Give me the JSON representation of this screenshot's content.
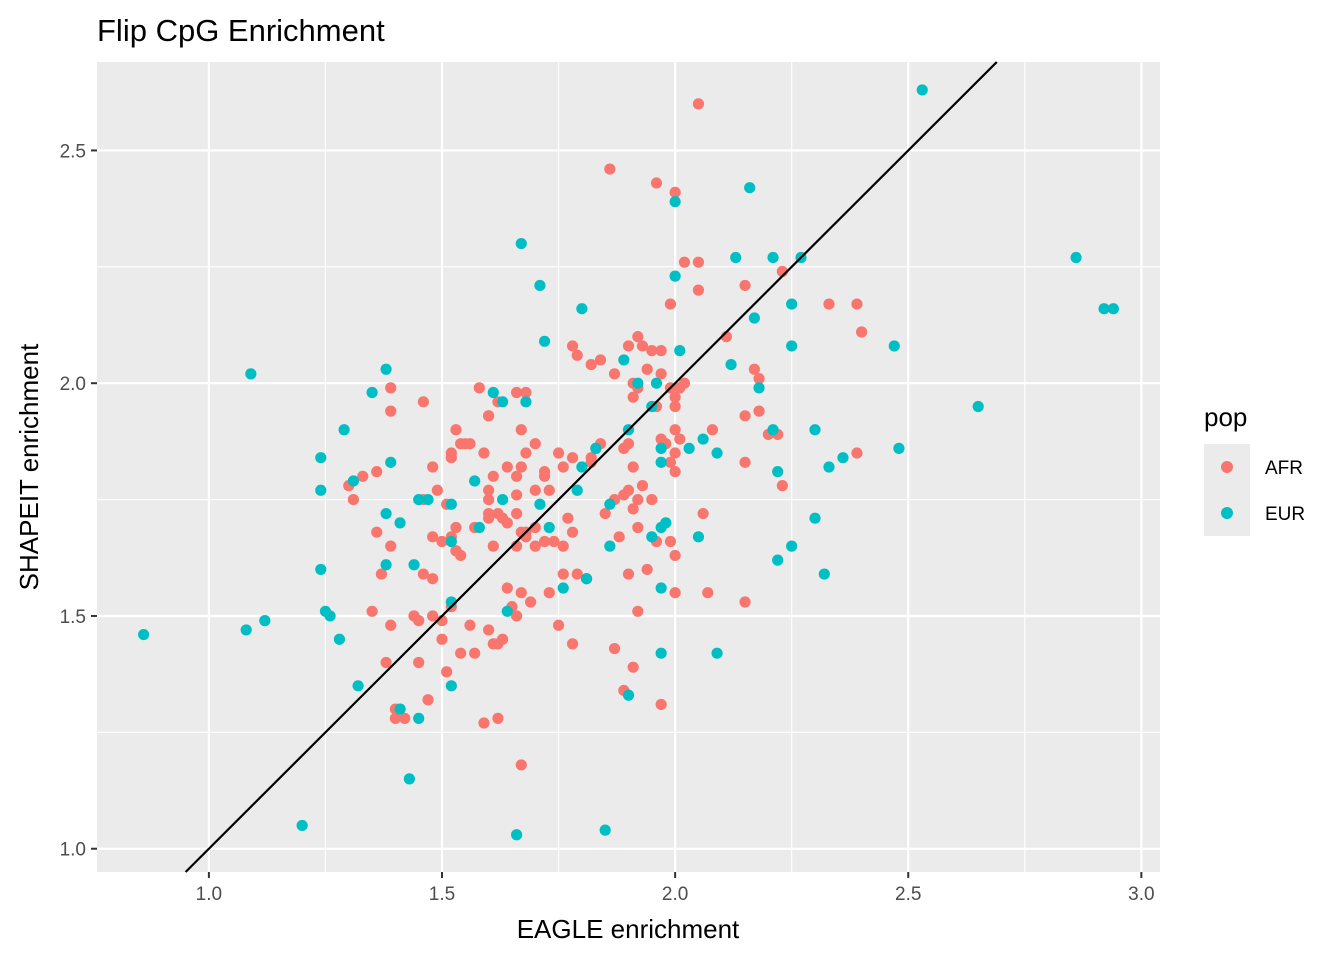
{
  "chart_data": {
    "type": "scatter",
    "title": "Flip CpG Enrichment",
    "xlabel": "EAGLE enrichment",
    "ylabel": "SHAPEIT enrichment",
    "xlim": [
      0.76,
      3.04
    ],
    "ylim": [
      0.95,
      2.69
    ],
    "x_ticks": [
      1.0,
      1.5,
      2.0,
      2.5,
      3.0
    ],
    "x_tick_labels": [
      "1.0",
      "1.5",
      "2.0",
      "2.5",
      "3.0"
    ],
    "y_ticks": [
      1.0,
      1.5,
      2.0,
      2.5
    ],
    "y_tick_labels": [
      "1.0",
      "1.5",
      "2.0",
      "2.5"
    ],
    "grid": true,
    "reference_line": {
      "slope": 1,
      "intercept": 0
    },
    "legend": {
      "title": "pop",
      "position": "right"
    },
    "colors": {
      "AFR": "#f8766d",
      "EUR": "#00bfc4",
      "panel_bg": "#ebebeb",
      "grid": "#ffffff"
    },
    "series": [
      {
        "name": "AFR",
        "points": [
          [
            2.05,
            2.6
          ],
          [
            1.86,
            2.46
          ],
          [
            1.96,
            2.43
          ],
          [
            2.0,
            2.41
          ],
          [
            2.02,
            2.26
          ],
          [
            2.05,
            2.26
          ],
          [
            2.05,
            2.2
          ],
          [
            1.99,
            2.17
          ],
          [
            2.23,
            2.24
          ],
          [
            2.15,
            2.21
          ],
          [
            2.33,
            2.17
          ],
          [
            2.39,
            2.17
          ],
          [
            2.4,
            2.11
          ],
          [
            2.11,
            2.1
          ],
          [
            2.17,
            2.03
          ],
          [
            2.18,
            2.01
          ],
          [
            1.92,
            2.1
          ],
          [
            1.78,
            2.08
          ],
          [
            1.79,
            2.06
          ],
          [
            1.82,
            2.04
          ],
          [
            1.84,
            2.05
          ],
          [
            1.87,
            2.02
          ],
          [
            1.9,
            2.08
          ],
          [
            1.93,
            2.08
          ],
          [
            1.95,
            2.07
          ],
          [
            1.97,
            2.07
          ],
          [
            1.94,
            2.03
          ],
          [
            1.97,
            2.02
          ],
          [
            1.91,
            2.0
          ],
          [
            1.92,
            1.99
          ],
          [
            1.99,
            1.99
          ],
          [
            2.01,
            1.99
          ],
          [
            2.02,
            2.0
          ],
          [
            2.0,
            1.97
          ],
          [
            1.91,
            1.97
          ],
          [
            1.96,
            1.95
          ],
          [
            2.0,
            1.95
          ],
          [
            1.39,
            1.99
          ],
          [
            1.39,
            1.94
          ],
          [
            1.46,
            1.96
          ],
          [
            1.58,
            1.99
          ],
          [
            1.6,
            1.93
          ],
          [
            1.6,
            1.93
          ],
          [
            1.66,
            1.98
          ],
          [
            1.68,
            1.98
          ],
          [
            1.62,
            1.96
          ],
          [
            2.18,
            1.94
          ],
          [
            2.15,
            1.93
          ],
          [
            2.2,
            1.89
          ],
          [
            2.22,
            1.89
          ],
          [
            2.08,
            1.9
          ],
          [
            2.0,
            1.9
          ],
          [
            2.01,
            1.88
          ],
          [
            1.97,
            1.88
          ],
          [
            1.98,
            1.87
          ],
          [
            2.0,
            1.85
          ],
          [
            1.99,
            1.83
          ],
          [
            2.0,
            1.81
          ],
          [
            1.89,
            1.86
          ],
          [
            1.9,
            1.87
          ],
          [
            1.82,
            1.84
          ],
          [
            1.84,
            1.87
          ],
          [
            1.83,
            1.86
          ],
          [
            1.82,
            1.83
          ],
          [
            1.78,
            1.84
          ],
          [
            1.75,
            1.85
          ],
          [
            1.76,
            1.82
          ],
          [
            1.67,
            1.9
          ],
          [
            1.68,
            1.85
          ],
          [
            1.7,
            1.87
          ],
          [
            1.72,
            1.8
          ],
          [
            1.72,
            1.81
          ],
          [
            1.73,
            1.77
          ],
          [
            1.7,
            1.77
          ],
          [
            1.66,
            1.8
          ],
          [
            1.67,
            1.82
          ],
          [
            1.64,
            1.82
          ],
          [
            1.61,
            1.8
          ],
          [
            1.59,
            1.85
          ],
          [
            1.55,
            1.87
          ],
          [
            1.52,
            1.85
          ],
          [
            1.54,
            1.87
          ],
          [
            1.53,
            1.9
          ],
          [
            1.56,
            1.87
          ],
          [
            1.52,
            1.84
          ],
          [
            1.48,
            1.82
          ],
          [
            1.46,
            1.75
          ],
          [
            1.49,
            1.77
          ],
          [
            1.51,
            1.74
          ],
          [
            1.6,
            1.77
          ],
          [
            1.6,
            1.75
          ],
          [
            1.36,
            1.81
          ],
          [
            1.33,
            1.8
          ],
          [
            1.3,
            1.78
          ],
          [
            1.31,
            1.75
          ],
          [
            1.36,
            1.68
          ],
          [
            1.39,
            1.65
          ],
          [
            1.37,
            1.59
          ],
          [
            1.35,
            1.51
          ],
          [
            1.53,
            1.69
          ],
          [
            1.52,
            1.67
          ],
          [
            1.53,
            1.64
          ],
          [
            1.54,
            1.63
          ],
          [
            1.57,
            1.69
          ],
          [
            1.6,
            1.72
          ],
          [
            1.62,
            1.72
          ],
          [
            1.63,
            1.71
          ],
          [
            1.6,
            1.71
          ],
          [
            1.61,
            1.65
          ],
          [
            1.64,
            1.7
          ],
          [
            1.66,
            1.72
          ],
          [
            1.67,
            1.68
          ],
          [
            1.68,
            1.68
          ],
          [
            1.7,
            1.69
          ],
          [
            1.68,
            1.67
          ],
          [
            1.66,
            1.76
          ],
          [
            1.66,
            1.65
          ],
          [
            1.7,
            1.65
          ],
          [
            1.72,
            1.66
          ],
          [
            1.74,
            1.66
          ],
          [
            1.76,
            1.65
          ],
          [
            1.77,
            1.71
          ],
          [
            1.78,
            1.68
          ],
          [
            1.79,
            1.59
          ],
          [
            1.76,
            1.59
          ],
          [
            1.81,
            1.58
          ],
          [
            1.85,
            1.72
          ],
          [
            1.87,
            1.75
          ],
          [
            1.89,
            1.76
          ],
          [
            1.9,
            1.77
          ],
          [
            1.91,
            1.73
          ],
          [
            1.92,
            1.75
          ],
          [
            1.95,
            1.75
          ],
          [
            1.91,
            1.82
          ],
          [
            1.93,
            1.78
          ],
          [
            1.88,
            1.67
          ],
          [
            1.92,
            1.69
          ],
          [
            1.96,
            1.66
          ],
          [
            1.99,
            1.66
          ],
          [
            2.0,
            1.63
          ],
          [
            1.94,
            1.6
          ],
          [
            1.9,
            1.59
          ],
          [
            1.92,
            1.51
          ],
          [
            2.0,
            1.55
          ],
          [
            2.06,
            1.72
          ],
          [
            2.07,
            1.55
          ],
          [
            2.15,
            1.83
          ],
          [
            2.23,
            1.78
          ],
          [
            2.15,
            1.53
          ],
          [
            2.39,
            1.85
          ],
          [
            1.64,
            1.56
          ],
          [
            1.65,
            1.52
          ],
          [
            1.67,
            1.55
          ],
          [
            1.69,
            1.53
          ],
          [
            1.66,
            1.5
          ],
          [
            1.73,
            1.55
          ],
          [
            1.75,
            1.48
          ],
          [
            1.78,
            1.44
          ],
          [
            1.6,
            1.47
          ],
          [
            1.61,
            1.44
          ],
          [
            1.63,
            1.45
          ],
          [
            1.62,
            1.44
          ],
          [
            1.54,
            1.42
          ],
          [
            1.57,
            1.42
          ],
          [
            1.56,
            1.48
          ],
          [
            1.48,
            1.5
          ],
          [
            1.5,
            1.49
          ],
          [
            1.52,
            1.52
          ],
          [
            1.45,
            1.49
          ],
          [
            1.44,
            1.5
          ],
          [
            1.44,
            1.5
          ],
          [
            1.45,
            1.4
          ],
          [
            1.5,
            1.45
          ],
          [
            1.39,
            1.48
          ],
          [
            1.38,
            1.4
          ],
          [
            1.46,
            1.59
          ],
          [
            1.48,
            1.58
          ],
          [
            1.5,
            1.66
          ],
          [
            1.53,
            1.64
          ],
          [
            1.48,
            1.67
          ],
          [
            1.47,
            1.32
          ],
          [
            1.51,
            1.38
          ],
          [
            1.4,
            1.3
          ],
          [
            1.4,
            1.28
          ],
          [
            1.41,
            1.3
          ],
          [
            1.42,
            1.28
          ],
          [
            1.59,
            1.27
          ],
          [
            1.62,
            1.28
          ],
          [
            1.67,
            1.18
          ],
          [
            1.87,
            1.43
          ],
          [
            1.89,
            1.34
          ],
          [
            1.91,
            1.39
          ],
          [
            1.97,
            1.31
          ]
        ]
      },
      {
        "name": "EUR",
        "points": [
          [
            2.53,
            2.63
          ],
          [
            2.0,
            2.39
          ],
          [
            2.16,
            2.42
          ],
          [
            1.67,
            2.3
          ],
          [
            1.71,
            2.21
          ],
          [
            1.8,
            2.16
          ],
          [
            2.0,
            2.23
          ],
          [
            2.13,
            2.27
          ],
          [
            2.21,
            2.27
          ],
          [
            2.27,
            2.27
          ],
          [
            2.25,
            2.17
          ],
          [
            2.17,
            2.14
          ],
          [
            2.86,
            2.27
          ],
          [
            2.92,
            2.16
          ],
          [
            2.94,
            2.16
          ],
          [
            1.72,
            2.09
          ],
          [
            2.01,
            2.07
          ],
          [
            2.12,
            2.04
          ],
          [
            2.25,
            2.08
          ],
          [
            2.47,
            2.08
          ],
          [
            1.09,
            2.02
          ],
          [
            1.38,
            2.03
          ],
          [
            1.89,
            2.05
          ],
          [
            1.92,
            2.0
          ],
          [
            1.96,
            2.0
          ],
          [
            2.18,
            1.99
          ],
          [
            2.65,
            1.95
          ],
          [
            1.61,
            1.98
          ],
          [
            1.63,
            1.96
          ],
          [
            1.68,
            1.96
          ],
          [
            1.35,
            1.98
          ],
          [
            1.29,
            1.9
          ],
          [
            1.24,
            1.84
          ],
          [
            1.31,
            1.79
          ],
          [
            1.24,
            1.77
          ],
          [
            1.39,
            1.83
          ],
          [
            1.38,
            1.72
          ],
          [
            1.41,
            1.7
          ],
          [
            1.45,
            1.75
          ],
          [
            1.47,
            1.75
          ],
          [
            1.52,
            1.74
          ],
          [
            1.57,
            1.79
          ],
          [
            1.63,
            1.75
          ],
          [
            1.71,
            1.74
          ],
          [
            1.79,
            1.77
          ],
          [
            1.8,
            1.82
          ],
          [
            1.83,
            1.86
          ],
          [
            1.9,
            1.9
          ],
          [
            1.95,
            1.95
          ],
          [
            2.06,
            1.88
          ],
          [
            2.09,
            1.85
          ],
          [
            2.03,
            1.86
          ],
          [
            1.97,
            1.86
          ],
          [
            1.97,
            1.83
          ],
          [
            2.21,
            1.9
          ],
          [
            2.22,
            1.81
          ],
          [
            2.3,
            1.9
          ],
          [
            2.33,
            1.82
          ],
          [
            2.36,
            1.84
          ],
          [
            2.48,
            1.86
          ],
          [
            1.24,
            1.6
          ],
          [
            1.38,
            1.61
          ],
          [
            1.44,
            1.61
          ],
          [
            1.25,
            1.51
          ],
          [
            1.26,
            1.5
          ],
          [
            1.28,
            1.45
          ],
          [
            1.52,
            1.66
          ],
          [
            1.58,
            1.69
          ],
          [
            1.52,
            1.53
          ],
          [
            1.64,
            1.51
          ],
          [
            1.73,
            1.69
          ],
          [
            1.76,
            1.56
          ],
          [
            1.81,
            1.58
          ],
          [
            1.86,
            1.74
          ],
          [
            1.86,
            1.65
          ],
          [
            1.95,
            1.67
          ],
          [
            1.97,
            1.69
          ],
          [
            1.98,
            1.7
          ],
          [
            1.97,
            1.56
          ],
          [
            2.05,
            1.67
          ],
          [
            2.22,
            1.62
          ],
          [
            2.25,
            1.65
          ],
          [
            2.3,
            1.71
          ],
          [
            2.32,
            1.59
          ],
          [
            1.97,
            1.42
          ],
          [
            2.09,
            1.42
          ],
          [
            1.08,
            1.47
          ],
          [
            1.12,
            1.49
          ],
          [
            0.86,
            1.46
          ],
          [
            1.32,
            1.35
          ],
          [
            1.52,
            1.35
          ],
          [
            1.41,
            1.3
          ],
          [
            1.45,
            1.28
          ],
          [
            1.9,
            1.33
          ],
          [
            1.43,
            1.15
          ],
          [
            1.2,
            1.05
          ],
          [
            1.66,
            1.03
          ],
          [
            1.85,
            1.04
          ]
        ]
      }
    ]
  }
}
